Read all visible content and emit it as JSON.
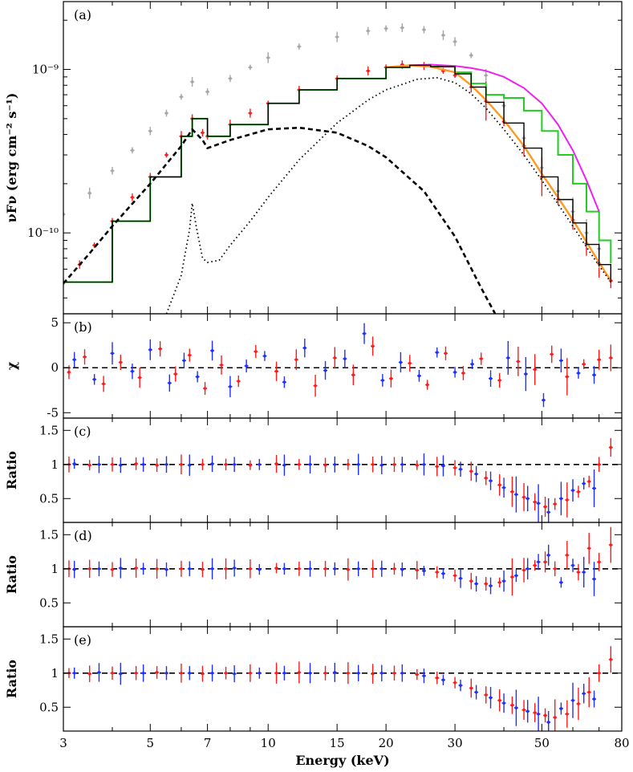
{
  "figure": {
    "xlabel": "Energy (keV)",
    "xticks": [
      3,
      5,
      7,
      10,
      15,
      20,
      30,
      50,
      80
    ],
    "xscale": "log",
    "xlim": [
      3,
      80
    ]
  },
  "colors": {
    "data_red": "#ff1a1a",
    "data_blue": "#1f2fff",
    "data_gray": "#a6a6a6",
    "model_green": "#22cc22",
    "model_magenta": "#ee22ee",
    "model_orange": "#ff9922",
    "model_black": "#000000"
  },
  "chart_data": [
    {
      "type": "line",
      "panel": "(a)",
      "ylabel": "νFν (erg cm⁻² s⁻¹)",
      "yscale": "log",
      "ylim": [
        3.2e-11,
        2.6e-09
      ],
      "yticks": [
        "10⁻⁹",
        "10⁻¹⁰"
      ],
      "ytick_values": [
        1e-09,
        1e-10
      ],
      "series": [
        {
          "style": "data-red",
          "x": [
            3.0,
            3.3,
            3.6,
            4.0,
            4.5,
            5.0,
            5.5,
            6.0,
            6.4,
            6.8,
            7.0,
            8.0,
            9.0,
            10.0,
            12.0,
            15.0,
            18.0,
            20.0,
            22.0,
            25.0,
            28.0,
            30.0,
            33.0,
            36.0,
            40.0,
            45.0,
            50.0,
            55.0,
            60.0,
            65.0,
            70.0,
            75.0
          ],
          "y": [
            5e-11,
            6.4e-11,
            8.4e-11,
            1.18e-10,
            1.65e-10,
            2.2e-10,
            3e-10,
            3.9e-10,
            5e-10,
            4.1e-10,
            3.9e-10,
            4.6e-10,
            5.4e-10,
            6.2e-10,
            7.5e-10,
            8.8e-10,
            9.8e-10,
            1.03e-09,
            1.07e-09,
            1.05e-09,
            9.8e-10,
            9.2e-10,
            7.8e-10,
            6.4e-10,
            4.8e-10,
            3.4e-10,
            2.2e-10,
            1.6e-10,
            1.2e-10,
            8.6e-11,
            6.5e-11,
            5.1e-11
          ]
        },
        {
          "style": "data-gray",
          "x": [
            3.0,
            3.5,
            4.0,
            4.5,
            5.0,
            5.5,
            6.0,
            6.4,
            7.0,
            8.0,
            9.0,
            10.0,
            12.0,
            15.0,
            18.0,
            20.0,
            22.0,
            25.0,
            28.0,
            30.0,
            33.0,
            36.0,
            40.0,
            45.0,
            50.0,
            55.0,
            60.0,
            65.0,
            70.0
          ],
          "y": [
            1.3e-10,
            1.75e-10,
            2.4e-10,
            3.2e-10,
            4.2e-10,
            5.4e-10,
            6.8e-10,
            8.4e-10,
            7.3e-10,
            8.8e-10,
            1.03e-09,
            1.18e-09,
            1.38e-09,
            1.58e-09,
            1.72e-09,
            1.78e-09,
            1.8e-09,
            1.75e-09,
            1.62e-09,
            1.48e-09,
            1.22e-09,
            9.2e-10,
            6e-10,
            3.8e-10,
            2.5e-10,
            1.8e-10,
            1.35e-10,
            1e-10,
            8e-11
          ]
        },
        {
          "style": "model-green-step",
          "x": [
            3.0,
            4.0,
            5.0,
            6.0,
            6.4,
            7.0,
            8.0,
            10.0,
            12.0,
            15.0,
            20.0,
            23.0,
            26.0,
            30.0,
            33.0,
            36.0,
            40.0,
            45.0,
            50.0,
            55.0,
            60.0,
            65.0,
            70.0,
            75.0
          ],
          "y": [
            5e-11,
            1.18e-10,
            2.2e-10,
            3.9e-10,
            5e-10,
            3.9e-10,
            4.6e-10,
            6.2e-10,
            7.5e-10,
            8.8e-10,
            1.03e-09,
            1.06e-09,
            1.04e-09,
            9.6e-10,
            8.2e-10,
            7e-10,
            6.7e-10,
            5.6e-10,
            4.2e-10,
            3e-10,
            2e-10,
            1.35e-10,
            9e-11,
            6.5e-11
          ]
        },
        {
          "style": "model-magenta",
          "x": [
            20.0,
            23.0,
            26.0,
            30.0,
            33.0,
            36.0,
            40.0,
            45.0,
            50.0,
            55.0,
            60.0,
            65.0,
            70.0
          ],
          "y": [
            1.03e-09,
            1.06e-09,
            1.07e-09,
            1.05e-09,
            1.02e-09,
            9.8e-10,
            9e-10,
            7.7e-10,
            6.2e-10,
            4.6e-10,
            3.2e-10,
            2.1e-10,
            1.35e-10
          ]
        },
        {
          "style": "model-orange",
          "x": [
            20.0,
            23.0,
            26.0,
            30.0,
            33.0,
            36.0,
            40.0,
            45.0,
            50.0,
            55.0,
            60.0,
            65.0,
            70.0,
            75.0
          ],
          "y": [
            1.03e-09,
            1.06e-09,
            1.04e-09,
            9.6e-10,
            8e-10,
            6.5e-10,
            4.9e-10,
            3.4e-10,
            2.3e-10,
            1.65e-10,
            1.2e-10,
            8.8e-11,
            6.6e-11,
            5.1e-11
          ]
        },
        {
          "style": "model-black-step",
          "x": [
            3.0,
            4.0,
            5.0,
            6.0,
            6.4,
            7.0,
            8.0,
            10.0,
            12.0,
            15.0,
            20.0,
            23.0,
            26.0,
            30.0,
            33.0,
            36.0,
            40.0,
            45.0,
            50.0,
            55.0,
            60.0,
            65.0,
            70.0,
            75.0
          ],
          "y": [
            5e-11,
            1.18e-10,
            2.2e-10,
            3.9e-10,
            5e-10,
            3.9e-10,
            4.6e-10,
            6.2e-10,
            7.5e-10,
            8.8e-10,
            1.03e-09,
            1.06e-09,
            1.04e-09,
            9.4e-10,
            7.8e-10,
            6.3e-10,
            4.7e-10,
            3.3e-10,
            2.2e-10,
            1.6e-10,
            1.15e-10,
            8.5e-11,
            6.4e-11,
            5e-11
          ]
        },
        {
          "style": "component-dashed",
          "x": [
            3.0,
            3.5,
            4.0,
            5.0,
            6.0,
            6.4,
            6.8,
            7.0,
            8.0,
            10.0,
            12.0,
            15.0,
            18.0,
            20.0,
            25.0,
            30.0,
            35.0,
            38.0
          ],
          "y": [
            4.9e-11,
            7.5e-11,
            1.1e-10,
            2e-10,
            3.4e-10,
            4.3e-10,
            3.7e-10,
            3.3e-10,
            3.7e-10,
            4.3e-10,
            4.4e-10,
            4.1e-10,
            3.4e-10,
            2.9e-10,
            1.8e-10,
            9.5e-11,
            4.6e-11,
            3.2e-11
          ]
        },
        {
          "style": "component-dotted",
          "x": [
            5.5,
            6.0,
            6.3,
            6.4,
            6.55,
            6.8,
            7.0,
            7.5,
            8.0,
            9.0,
            10.0,
            12.0,
            15.0,
            18.0,
            20.0,
            24.0,
            27.0,
            30.0,
            33.0,
            36.0,
            40.0,
            45.0,
            50.0,
            55.0,
            60.0,
            65.0,
            70.0,
            75.0
          ],
          "y": [
            3.2e-11,
            5.5e-11,
            1.05e-10,
            1.52e-10,
            1.1e-10,
            7e-11,
            6.6e-11,
            6.8e-11,
            8.4e-11,
            1.18e-10,
            1.65e-10,
            2.8e-10,
            4.7e-10,
            6.5e-10,
            7.5e-10,
            8.7e-10,
            8.9e-10,
            8.3e-10,
            7.1e-10,
            5.8e-10,
            4.3e-10,
            3e-10,
            2.1e-10,
            1.5e-10,
            1.1e-10,
            8.2e-11,
            6.3e-11,
            5e-11
          ]
        }
      ]
    },
    {
      "type": "scatter",
      "panel": "(b)",
      "ylabel": "χ",
      "ylim": [
        -5.6,
        6.0
      ],
      "yticks": [
        5,
        0,
        -5
      ],
      "reference_line": 0,
      "series": [
        {
          "style": "data-red",
          "x": [
            3.1,
            3.4,
            3.8,
            4.2,
            4.7,
            5.3,
            5.8,
            6.3,
            6.9,
            7.6,
            8.4,
            9.3,
            10.5,
            11.8,
            13.2,
            14.8,
            16.5,
            18.5,
            20.6,
            23.0,
            25.5,
            28.4,
            31.5,
            35.0,
            39.0,
            43.5,
            48.0,
            53.0,
            58.0,
            64.0,
            70.0,
            75.0
          ],
          "y": [
            -0.5,
            1.2,
            -1.8,
            0.6,
            -1.1,
            2.1,
            -0.7,
            1.4,
            -2.3,
            0.3,
            -1.5,
            1.8,
            -0.4,
            0.9,
            -2.0,
            1.1,
            -0.8,
            2.4,
            -1.2,
            0.5,
            -1.9,
            1.6,
            -0.6,
            1.0,
            -1.4,
            0.7,
            -0.2,
            1.5,
            -1.0,
            0.4,
            0.9,
            1.1
          ]
        },
        {
          "style": "data-blue",
          "x": [
            3.2,
            3.6,
            4.0,
            4.5,
            5.0,
            5.6,
            6.1,
            6.6,
            7.2,
            8.0,
            8.8,
            9.8,
            11.0,
            12.4,
            14.0,
            15.7,
            17.6,
            19.6,
            21.8,
            24.3,
            27.0,
            30.0,
            33.2,
            37.0,
            41.0,
            45.5,
            50.5,
            56.0,
            62.0,
            68.0
          ],
          "y": [
            0.9,
            -1.3,
            1.6,
            -0.4,
            2.0,
            -1.7,
            0.8,
            -1.0,
            1.9,
            -2.1,
            0.2,
            1.3,
            -1.6,
            2.2,
            -0.3,
            1.0,
            3.8,
            -1.4,
            0.6,
            -0.9,
            1.7,
            -0.5,
            0.4,
            -1.2,
            1.1,
            -0.7,
            -3.6,
            0.8,
            -0.6,
            -0.8
          ]
        }
      ]
    },
    {
      "type": "scatter",
      "panel": "(c)",
      "ylabel": "Ratio",
      "ylim": [
        0.15,
        1.68
      ],
      "yticks": [
        1.5,
        1,
        0.5
      ],
      "reference_line": 1,
      "series": [
        {
          "style": "data-red",
          "x": [
            3.1,
            3.5,
            4.0,
            4.6,
            5.2,
            6.0,
            6.8,
            7.8,
            9.0,
            10.5,
            12.0,
            14.0,
            16.0,
            18.5,
            21.0,
            24.0,
            27.0,
            30.0,
            33.0,
            36.0,
            39.0,
            42.0,
            45.0,
            48.0,
            51.0,
            54.0,
            58.0,
            62.0,
            66.0,
            70.0,
            75.0
          ],
          "y": [
            1.0,
            0.99,
            1.0,
            1.01,
            0.99,
            1.0,
            1.0,
            1.0,
            0.99,
            1.01,
            1.0,
            0.99,
            1.0,
            1.0,
            1.0,
            0.99,
            0.97,
            0.95,
            0.9,
            0.8,
            0.7,
            0.6,
            0.52,
            0.45,
            0.38,
            0.42,
            0.48,
            0.6,
            0.75,
            1.0,
            1.25
          ]
        },
        {
          "style": "data-blue",
          "x": [
            3.2,
            3.7,
            4.2,
            4.8,
            5.5,
            6.3,
            7.2,
            8.2,
            9.5,
            11.0,
            12.8,
            14.8,
            17.0,
            19.5,
            22.0,
            25.0,
            28.0,
            31.0,
            34.0,
            37.0,
            40.0,
            43.0,
            46.0,
            49.0,
            52.0,
            56.0,
            60.0,
            64.0,
            68.0
          ],
          "y": [
            1.01,
            1.0,
            0.99,
            1.0,
            1.0,
            0.99,
            1.01,
            1.0,
            1.0,
            0.99,
            1.0,
            1.0,
            1.0,
            0.99,
            1.0,
            1.0,
            0.98,
            0.93,
            0.86,
            0.76,
            0.66,
            0.56,
            0.5,
            0.43,
            0.3,
            0.5,
            0.62,
            0.72,
            0.65
          ]
        }
      ]
    },
    {
      "type": "scatter",
      "panel": "(d)",
      "ylabel": "Ratio",
      "ylim": [
        0.15,
        1.68
      ],
      "yticks": [
        1.5,
        1,
        0.5
      ],
      "reference_line": 1,
      "series": [
        {
          "style": "data-red",
          "x": [
            3.1,
            3.5,
            4.0,
            4.6,
            5.2,
            6.0,
            6.8,
            7.8,
            9.0,
            10.5,
            12.0,
            14.0,
            16.0,
            18.5,
            21.0,
            24.0,
            27.0,
            30.0,
            33.0,
            36.0,
            39.0,
            42.0,
            45.0,
            48.0,
            51.0,
            54.0,
            58.0,
            62.0,
            66.0,
            70.0,
            75.0
          ],
          "y": [
            1.0,
            1.0,
            0.99,
            1.01,
            1.0,
            1.0,
            0.99,
            1.0,
            1.0,
            1.01,
            1.0,
            1.0,
            0.99,
            1.0,
            1.0,
            0.98,
            0.95,
            0.9,
            0.82,
            0.78,
            0.8,
            0.88,
            0.98,
            1.05,
            1.1,
            1.0,
            1.2,
            0.95,
            1.3,
            1.1,
            1.35
          ]
        },
        {
          "style": "data-blue",
          "x": [
            3.2,
            3.7,
            4.2,
            4.8,
            5.5,
            6.3,
            7.2,
            8.2,
            9.5,
            11.0,
            12.8,
            14.8,
            17.0,
            19.5,
            22.0,
            25.0,
            28.0,
            31.0,
            34.0,
            37.0,
            40.0,
            43.0,
            46.0,
            49.0,
            52.0,
            56.0,
            60.0,
            64.0,
            68.0
          ],
          "y": [
            0.99,
            1.0,
            1.01,
            1.0,
            0.99,
            1.0,
            1.0,
            1.01,
            0.99,
            1.0,
            1.0,
            1.0,
            1.0,
            1.0,
            0.99,
            0.97,
            0.93,
            0.86,
            0.78,
            0.75,
            0.82,
            0.9,
            1.0,
            1.1,
            1.2,
            0.8,
            1.05,
            0.95,
            0.85
          ]
        }
      ]
    },
    {
      "type": "scatter",
      "panel": "(e)",
      "ylabel": "Ratio",
      "ylim": [
        0.15,
        1.68
      ],
      "yticks": [
        1.5,
        1,
        0.5
      ],
      "reference_line": 1,
      "series": [
        {
          "style": "data-red",
          "x": [
            3.1,
            3.5,
            4.0,
            4.6,
            5.2,
            6.0,
            6.8,
            7.8,
            9.0,
            10.5,
            12.0,
            14.0,
            16.0,
            18.5,
            21.0,
            24.0,
            27.0,
            30.0,
            33.0,
            36.0,
            39.0,
            42.0,
            45.0,
            48.0,
            51.0,
            54.0,
            58.0,
            62.0,
            66.0,
            70.0,
            75.0
          ],
          "y": [
            1.0,
            0.99,
            1.0,
            1.0,
            1.01,
            1.0,
            0.99,
            1.0,
            1.0,
            1.0,
            1.01,
            1.0,
            1.0,
            0.99,
            1.0,
            0.98,
            0.93,
            0.86,
            0.78,
            0.68,
            0.6,
            0.53,
            0.46,
            0.42,
            0.38,
            0.35,
            0.4,
            0.55,
            0.72,
            1.0,
            1.2
          ]
        },
        {
          "style": "data-blue",
          "x": [
            3.2,
            3.7,
            4.2,
            4.8,
            5.5,
            6.3,
            7.2,
            8.2,
            9.5,
            11.0,
            12.8,
            14.8,
            17.0,
            19.5,
            22.0,
            25.0,
            28.0,
            31.0,
            34.0,
            37.0,
            40.0,
            43.0,
            46.0,
            49.0,
            52.0,
            56.0,
            60.0,
            64.0,
            68.0
          ],
          "y": [
            1.0,
            1.01,
            0.99,
            1.0,
            1.0,
            1.0,
            1.0,
            0.99,
            1.0,
            1.0,
            1.0,
            1.01,
            1.0,
            1.0,
            1.0,
            0.96,
            0.9,
            0.82,
            0.72,
            0.64,
            0.56,
            0.49,
            0.44,
            0.4,
            0.28,
            0.48,
            0.6,
            0.7,
            0.62
          ]
        }
      ]
    }
  ]
}
